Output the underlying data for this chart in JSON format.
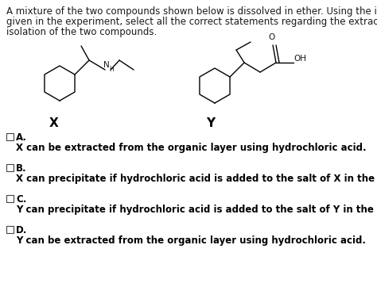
{
  "background_color": "#ffffff",
  "title_lines": [
    "A mixture of the two compounds shown below is dissolved in ether. Using the information",
    "given in the experiment, select all the correct statements regarding the extraction and",
    "isolation of the two compounds."
  ],
  "title_fontsize": 8.5,
  "title_color": "#1a1a1a",
  "label_x": "X",
  "label_y": "Y",
  "label_fontsize": 11,
  "label_fontweight": "bold",
  "options": [
    {
      "letter": "A.",
      "text": "X can be extracted from the organic layer using hydrochloric acid."
    },
    {
      "letter": "B.",
      "text": "X can precipitate if hydrochloric acid is added to the salt of X in the aqueous layer."
    },
    {
      "letter": "C.",
      "text": "Y can precipitate if hydrochloric acid is added to the salt of Y in the aqueous layer."
    },
    {
      "letter": "D.",
      "text": "Y can be extracted from the organic layer using hydrochloric acid."
    }
  ],
  "option_fontsize": 8.5,
  "option_letter_fontsize": 8.5
}
